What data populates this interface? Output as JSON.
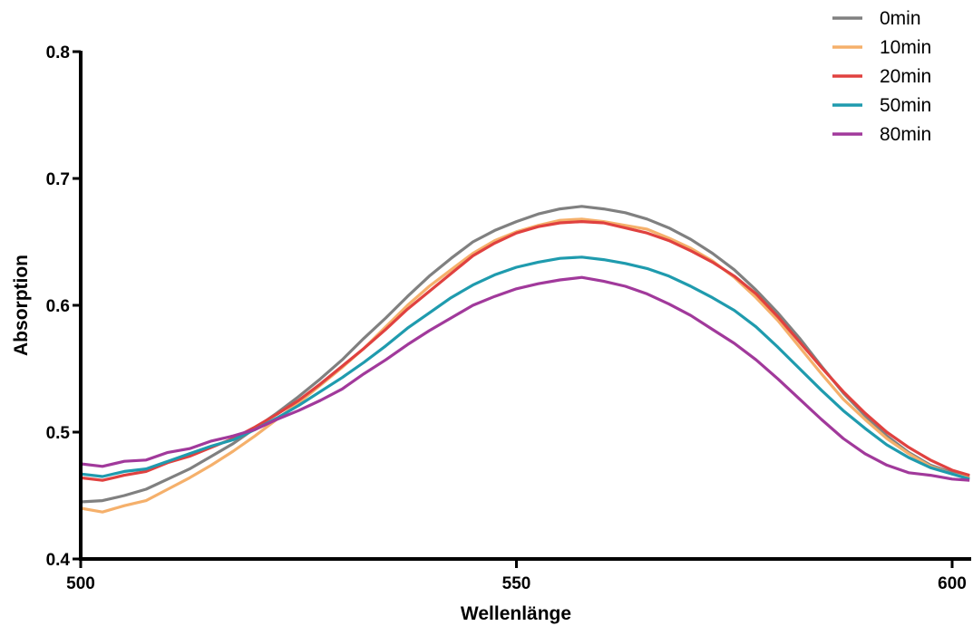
{
  "chart_data": {
    "type": "line",
    "title": "",
    "xlabel": "Wellenlänge",
    "ylabel": "Absorption",
    "xlim": [
      500,
      602
    ],
    "ylim": [
      0.4,
      0.8
    ],
    "x_ticks": [
      500,
      550,
      600
    ],
    "x_tick_labels": [
      "500",
      "550",
      "600"
    ],
    "y_ticks": [
      0.4,
      0.5,
      0.6,
      0.7,
      0.8
    ],
    "y_tick_labels": [
      "0.4",
      "0.5",
      "0.6",
      "0.7",
      "0.8"
    ],
    "grid": false,
    "legend_position": "top-right",
    "x": [
      500,
      502.5,
      505,
      507.5,
      510,
      512.5,
      515,
      517.5,
      520,
      522.5,
      525,
      527.5,
      530,
      532.5,
      535,
      537.5,
      540,
      542.5,
      545,
      547.5,
      550,
      552.5,
      555,
      557.5,
      560,
      562.5,
      565,
      567.5,
      570,
      572.5,
      575,
      577.5,
      580,
      582.5,
      585,
      587.5,
      590,
      592.5,
      595,
      597.5,
      600,
      602
    ],
    "series": [
      {
        "name": "0min",
        "color": "#808080",
        "values": [
          0.445,
          0.446,
          0.45,
          0.455,
          0.463,
          0.471,
          0.481,
          0.491,
          0.503,
          0.515,
          0.528,
          0.542,
          0.557,
          0.574,
          0.59,
          0.607,
          0.623,
          0.637,
          0.65,
          0.659,
          0.666,
          0.672,
          0.676,
          0.678,
          0.676,
          0.673,
          0.668,
          0.661,
          0.652,
          0.641,
          0.628,
          0.612,
          0.594,
          0.574,
          0.552,
          0.531,
          0.513,
          0.497,
          0.484,
          0.474,
          0.468,
          0.465
        ]
      },
      {
        "name": "10min",
        "color": "#F5B06B",
        "values": [
          0.44,
          0.437,
          0.442,
          0.446,
          0.455,
          0.464,
          0.474,
          0.485,
          0.497,
          0.51,
          0.523,
          0.537,
          0.551,
          0.566,
          0.583,
          0.6,
          0.615,
          0.628,
          0.641,
          0.651,
          0.658,
          0.663,
          0.667,
          0.668,
          0.666,
          0.663,
          0.66,
          0.653,
          0.645,
          0.635,
          0.622,
          0.606,
          0.588,
          0.567,
          0.546,
          0.526,
          0.51,
          0.495,
          0.483,
          0.473,
          0.467,
          0.464
        ]
      },
      {
        "name": "20min",
        "color": "#E0413F",
        "values": [
          0.464,
          0.462,
          0.466,
          0.469,
          0.476,
          0.481,
          0.488,
          0.495,
          0.504,
          0.514,
          0.525,
          0.538,
          0.552,
          0.566,
          0.581,
          0.597,
          0.611,
          0.625,
          0.639,
          0.649,
          0.657,
          0.662,
          0.665,
          0.666,
          0.665,
          0.661,
          0.657,
          0.651,
          0.643,
          0.634,
          0.623,
          0.609,
          0.591,
          0.571,
          0.551,
          0.532,
          0.515,
          0.5,
          0.488,
          0.478,
          0.47,
          0.466
        ]
      },
      {
        "name": "50min",
        "color": "#1F9BAE",
        "values": [
          0.467,
          0.465,
          0.469,
          0.471,
          0.477,
          0.483,
          0.489,
          0.494,
          0.502,
          0.511,
          0.521,
          0.532,
          0.543,
          0.555,
          0.568,
          0.582,
          0.594,
          0.606,
          0.616,
          0.624,
          0.63,
          0.634,
          0.637,
          0.638,
          0.636,
          0.633,
          0.629,
          0.623,
          0.615,
          0.606,
          0.596,
          0.583,
          0.567,
          0.55,
          0.533,
          0.517,
          0.503,
          0.49,
          0.48,
          0.472,
          0.467,
          0.463
        ]
      },
      {
        "name": "80min",
        "color": "#A1399B",
        "values": [
          0.475,
          0.473,
          0.477,
          0.478,
          0.484,
          0.487,
          0.493,
          0.497,
          0.502,
          0.51,
          0.517,
          0.525,
          0.534,
          0.546,
          0.557,
          0.569,
          0.58,
          0.59,
          0.6,
          0.607,
          0.613,
          0.617,
          0.62,
          0.622,
          0.619,
          0.615,
          0.609,
          0.601,
          0.592,
          0.581,
          0.57,
          0.557,
          0.542,
          0.526,
          0.51,
          0.495,
          0.483,
          0.474,
          0.468,
          0.466,
          0.463,
          0.462
        ]
      }
    ]
  }
}
